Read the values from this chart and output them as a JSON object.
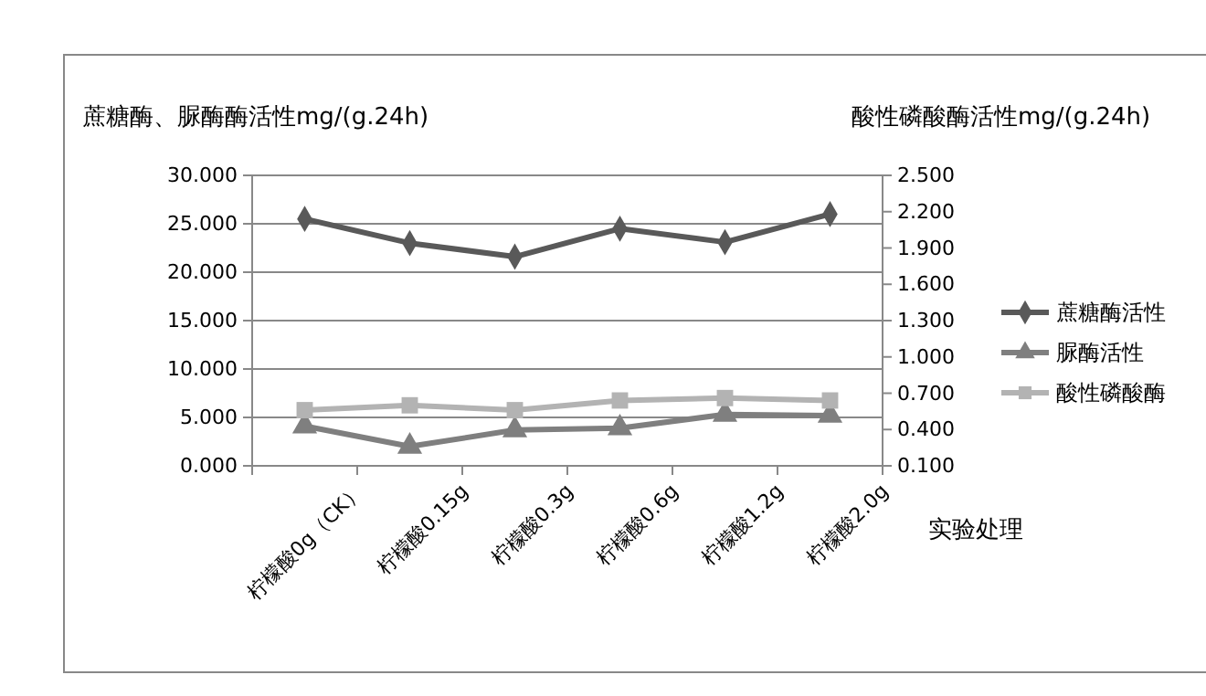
{
  "chart_data": {
    "type": "line",
    "ylabel": "蔗糖酶、脲酶酶活性mg/(g.24h)",
    "y2label": "酸性磷酸酶活性mg/(g.24h)",
    "xlabel": "实验处理",
    "categories": [
      "柠檬酸0g（CK）",
      "柠檬酸0.15g",
      "柠檬酸0.3g",
      "柠檬酸0.6g",
      "柠檬酸1.2g",
      "柠檬酸2.0g"
    ],
    "series": [
      {
        "name": "蔗糖酶活性",
        "color": "#595959",
        "marker": "diamond",
        "values": [
          25.5,
          23.0,
          21.6,
          24.5,
          23.1,
          26.0
        ]
      },
      {
        "name": "脲酶活性",
        "color": "#7f7f7f",
        "marker": "triangle",
        "values": [
          4.1,
          2.0,
          3.7,
          3.9,
          5.3,
          5.2
        ]
      },
      {
        "name": "酸性磷酸酶",
        "color": "#b3b3b3",
        "marker": "square",
        "axis": "y2",
        "values": [
          0.56,
          0.6,
          0.56,
          0.64,
          0.66,
          0.64
        ]
      }
    ],
    "ylim": [
      0,
      30
    ],
    "yticks": [
      {
        "value": 0,
        "label": "0.000"
      },
      {
        "value": 5,
        "label": "5.000"
      },
      {
        "value": 10,
        "label": "10.000"
      },
      {
        "value": 15,
        "label": "15.000"
      },
      {
        "value": 20,
        "label": "20.000"
      },
      {
        "value": 25,
        "label": "25.000"
      },
      {
        "value": 30,
        "label": "30.000"
      }
    ],
    "y2lim": [
      0.1,
      2.5
    ],
    "y2ticks": [
      {
        "value": 0.1,
        "label": "0.100"
      },
      {
        "value": 0.4,
        "label": "0.400"
      },
      {
        "value": 0.7,
        "label": "0.700"
      },
      {
        "value": 1.0,
        "label": "1.000"
      },
      {
        "value": 1.3,
        "label": "1.300"
      },
      {
        "value": 1.6,
        "label": "1.600"
      },
      {
        "value": 1.9,
        "label": "1.900"
      },
      {
        "value": 2.2,
        "label": "2.200"
      },
      {
        "value": 2.5,
        "label": "2.500"
      }
    ],
    "grid": "y",
    "legend": "right"
  }
}
